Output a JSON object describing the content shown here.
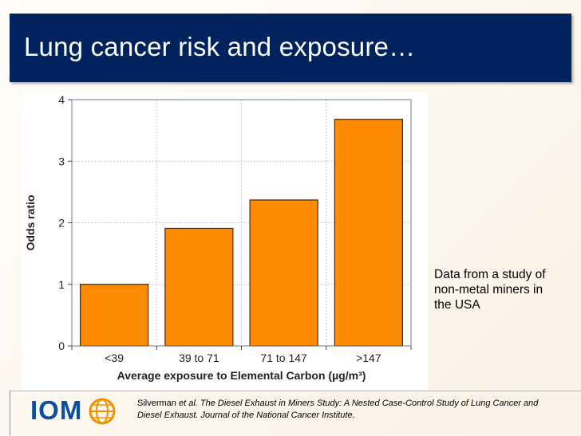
{
  "slide": {
    "title": "Lung cancer risk and exposure…",
    "side_note": "Data from a study of non-metal miners in the USA",
    "logo_text": "IOM",
    "citation": {
      "author": "Silverman ",
      "etal": "et al.",
      "text": " The Diesel Exhaust in Miners Study: A Nested Case-Control Study of Lung Cancer and Diesel Exhaust. Journal of the National Cancer Institute."
    }
  },
  "colors": {
    "title_bar": "#00235e",
    "bar_fill": "#ff8c00",
    "bar_stroke": "#3a2a10",
    "logo_blue": "#0a4fa0",
    "logo_orange": "#f39200"
  },
  "chart_data": {
    "type": "bar",
    "categories": [
      "<39",
      "39 to 71",
      "71 to 147",
      ">147"
    ],
    "values": [
      1.0,
      1.91,
      2.37,
      3.68
    ],
    "xlabel": "Average exposure to Elemental Carbon (µg/m³)",
    "ylabel": "Odds ratio",
    "ylim": [
      0,
      4
    ],
    "yticks": [
      "0",
      "1",
      "2",
      "3",
      "4"
    ],
    "grid": true
  }
}
